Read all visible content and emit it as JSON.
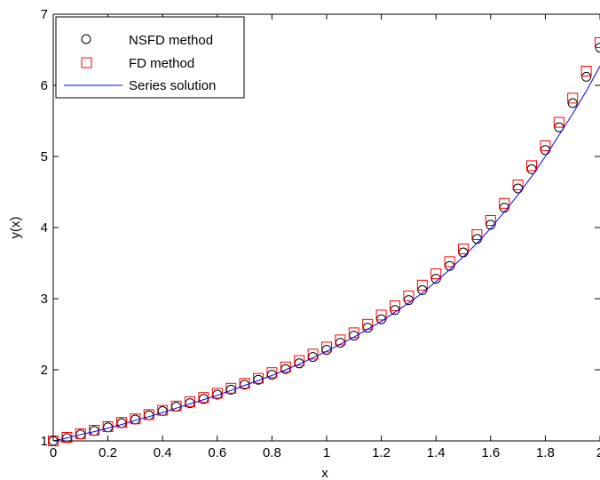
{
  "chart_data": {
    "type": "line",
    "title": "",
    "xlabel": "x",
    "ylabel": "y(x)",
    "xlim": [
      0,
      2
    ],
    "ylim": [
      1,
      7
    ],
    "xticks": [
      "0",
      "0.2",
      "0.4",
      "0.6",
      "0.8",
      "1",
      "1.2",
      "1.4",
      "1.6",
      "1.8",
      "2"
    ],
    "yticks": [
      "1",
      "2",
      "3",
      "4",
      "5",
      "6",
      "7"
    ],
    "grid": false,
    "legend_position": "top-left",
    "x": [
      0,
      0.05,
      0.1,
      0.15,
      0.2,
      0.25,
      0.3,
      0.35,
      0.4,
      0.45,
      0.5,
      0.55,
      0.6,
      0.65,
      0.7,
      0.75,
      0.8,
      0.85,
      0.9,
      0.95,
      1.0,
      1.05,
      1.1,
      1.15,
      1.2,
      1.25,
      1.3,
      1.35,
      1.4,
      1.45,
      1.5,
      1.55,
      1.6,
      1.65,
      1.7,
      1.75,
      1.8,
      1.85,
      1.9,
      1.95,
      2.0
    ],
    "series": [
      {
        "name": "NSFD method",
        "style": "circle-markers",
        "color": "#000000",
        "values": [
          1.0,
          1.04,
          1.09,
          1.14,
          1.19,
          1.25,
          1.3,
          1.36,
          1.42,
          1.48,
          1.53,
          1.59,
          1.65,
          1.72,
          1.79,
          1.86,
          1.93,
          2.01,
          2.09,
          2.18,
          2.28,
          2.38,
          2.48,
          2.59,
          2.71,
          2.84,
          2.98,
          3.12,
          3.28,
          3.46,
          3.65,
          3.84,
          4.04,
          4.28,
          4.55,
          4.82,
          5.09,
          5.41,
          5.75,
          6.12,
          6.53
        ]
      },
      {
        "name": "FD method",
        "style": "square-markers",
        "color": "#ff0000",
        "values": [
          1.0,
          1.05,
          1.1,
          1.15,
          1.2,
          1.26,
          1.31,
          1.37,
          1.43,
          1.49,
          1.55,
          1.61,
          1.67,
          1.74,
          1.81,
          1.88,
          1.96,
          2.04,
          2.13,
          2.22,
          2.32,
          2.42,
          2.52,
          2.64,
          2.77,
          2.9,
          3.04,
          3.19,
          3.35,
          3.52,
          3.7,
          3.9,
          4.1,
          4.34,
          4.6,
          4.87,
          5.15,
          5.48,
          5.82,
          6.2,
          6.6
        ]
      },
      {
        "name": "Series solution",
        "style": "line",
        "color": "#0000ff",
        "values": [
          1.0,
          1.04,
          1.09,
          1.13,
          1.18,
          1.23,
          1.29,
          1.34,
          1.4,
          1.46,
          1.52,
          1.58,
          1.64,
          1.71,
          1.78,
          1.85,
          1.92,
          2.0,
          2.08,
          2.17,
          2.26,
          2.36,
          2.46,
          2.57,
          2.68,
          2.81,
          2.94,
          3.08,
          3.24,
          3.41,
          3.59,
          3.78,
          3.99,
          4.22,
          4.46,
          4.72,
          5.0,
          5.3,
          5.6,
          5.92,
          6.27
        ]
      }
    ]
  }
}
